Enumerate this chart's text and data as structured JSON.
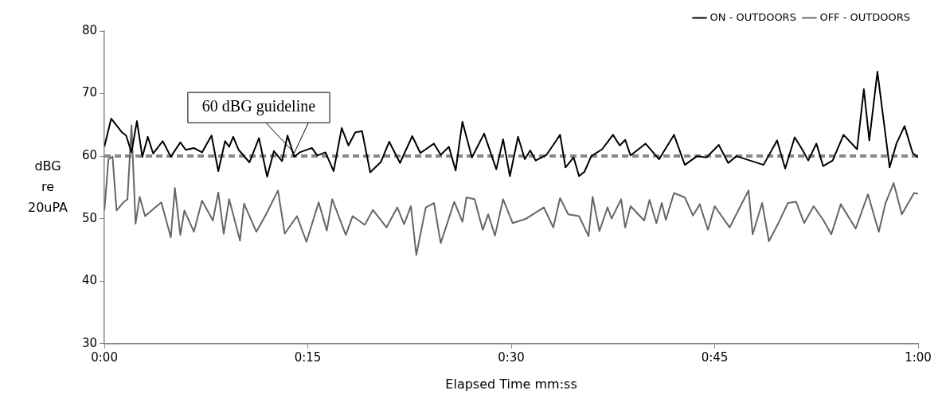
{
  "chart_data": {
    "type": "line",
    "xlabel": "Elapsed Time mm:ss",
    "ylabel": "dBG re 20uPA",
    "xlim": [
      0,
      60
    ],
    "xticks": [
      {
        "value": 0,
        "label": "0:00"
      },
      {
        "value": 15,
        "label": "0:15"
      },
      {
        "value": 30,
        "label": "0:30"
      },
      {
        "value": 45,
        "label": "0:45"
      },
      {
        "value": 60,
        "label": "1:00"
      }
    ],
    "ylim": [
      30,
      80
    ],
    "yticks": [
      30,
      40,
      50,
      60,
      70,
      80
    ],
    "grid": false,
    "legend": "top right",
    "marker": "none",
    "line_style": "solid",
    "ref_lines": [
      {
        "axis": "y",
        "value": 60,
        "color": "#888888",
        "line_style": "dashed"
      }
    ],
    "annotations": [
      {
        "text": "60 dBG guideline",
        "x": 14,
        "y": 60
      }
    ],
    "series": [
      {
        "name": "ON - OUTDOORS",
        "color": "#000000",
        "x": [
          0,
          0.5,
          1.3,
          1.6,
          2.0,
          2.4,
          2.8,
          3.2,
          3.6,
          4.3,
          4.9,
          5.6,
          6.0,
          6.6,
          7.2,
          7.9,
          8.4,
          8.9,
          9.2,
          9.5,
          9.9,
          10.7,
          11.4,
          12.0,
          12.5,
          13.1,
          13.5,
          14.0,
          14.4,
          15.3,
          15.7,
          16.3,
          16.9,
          17.5,
          18.0,
          18.5,
          19.0,
          19.6,
          20.4,
          21.0,
          21.8,
          22.7,
          23.3,
          23.7,
          24.3,
          24.8,
          25.4,
          25.9,
          26.4,
          27.1,
          28.0,
          28.9,
          29.4,
          29.9,
          30.5,
          31.0,
          31.4,
          31.8,
          32.6,
          33.1,
          33.6,
          34.0,
          34.6,
          35.0,
          35.4,
          35.9,
          36.7,
          37.5,
          38.0,
          38.4,
          38.8,
          39.9,
          40.9,
          42.0,
          42.8,
          43.7,
          44.4,
          45.3,
          46.0,
          46.6,
          47.6,
          48.6,
          49.6,
          50.2,
          50.9,
          51.5,
          51.9,
          52.5,
          53.0,
          53.7,
          54.5,
          55.5,
          56.0,
          56.4,
          57.0,
          57.9,
          58.4,
          59.0,
          59.6,
          60
        ],
        "values": [
          61.5,
          66,
          63.8,
          63.3,
          60.6,
          65.6,
          59.9,
          63.1,
          60.4,
          62.4,
          59.9,
          62.2,
          61,
          61.3,
          60.6,
          63.3,
          57.6,
          62.4,
          61.5,
          63.1,
          61,
          59,
          62.9,
          56.7,
          60.8,
          59.2,
          63.3,
          59.9,
          60.6,
          61.3,
          60.1,
          60.6,
          57.6,
          64.5,
          61.7,
          63.8,
          64,
          57.4,
          59.1,
          62.3,
          58.9,
          63.2,
          60.5,
          61.1,
          62,
          60.2,
          61.5,
          57.7,
          65.5,
          59.8,
          63.6,
          57.9,
          62.7,
          56.8,
          63.1,
          59.5,
          60.9,
          59.3,
          60.2,
          61.8,
          63.4,
          58.2,
          59.8,
          56.8,
          57.5,
          60,
          61.1,
          63.4,
          61.7,
          62.6,
          60.1,
          62,
          59.5,
          63.4,
          58.6,
          60,
          59.8,
          61.8,
          58.9,
          60,
          59.3,
          58.6,
          62.5,
          58,
          63,
          60.9,
          59.3,
          62,
          58.4,
          59.3,
          63.4,
          61.1,
          70.7,
          62.5,
          73.5,
          58.2,
          62,
          64.8,
          60.5,
          59.8
        ]
      },
      {
        "name": "OFF - OUTDOORS",
        "color": "#666666",
        "x": [
          0,
          0.3,
          0.6,
          0.9,
          1.4,
          1.7,
          2.0,
          2.3,
          2.6,
          3.0,
          3.7,
          4.2,
          4.9,
          5.2,
          5.6,
          5.9,
          6.6,
          7.2,
          8.0,
          8.4,
          8.8,
          9.2,
          10.0,
          10.3,
          11.2,
          11.9,
          12.8,
          13.3,
          14.2,
          14.9,
          15.8,
          16.4,
          16.8,
          17.8,
          18.3,
          19.2,
          19.8,
          20.8,
          21.6,
          22.1,
          22.6,
          23.0,
          23.7,
          24.3,
          24.8,
          25.8,
          26.4,
          26.7,
          27.3,
          27.9,
          28.3,
          28.8,
          29.4,
          30.1,
          31.1,
          32.4,
          33.1,
          33.6,
          34.2,
          35.0,
          35.7,
          36.0,
          36.5,
          37.1,
          37.4,
          38.1,
          38.4,
          38.8,
          39.8,
          40.2,
          40.7,
          41.1,
          41.4,
          42.0,
          42.8,
          43.4,
          43.9,
          44.5,
          45.0,
          46.1,
          46.9,
          47.5,
          47.8,
          48.5,
          49.0,
          49.7,
          50.4,
          51.0,
          51.6,
          52.3,
          53.0,
          53.6,
          54.3,
          55.4,
          56.3,
          57.1,
          57.6,
          58.2,
          58.8,
          59.7,
          60
        ],
        "values": [
          51.3,
          59.5,
          59.9,
          51.3,
          52.6,
          53.1,
          64.9,
          49.2,
          53.5,
          50.4,
          51.7,
          52.6,
          47,
          54.9,
          47.4,
          51.3,
          47.9,
          52.9,
          49.7,
          54.2,
          47.6,
          53.1,
          46.5,
          52.4,
          47.9,
          50.6,
          54.5,
          47.6,
          50.4,
          46.3,
          52.6,
          48.1,
          53.1,
          47.4,
          50.4,
          49,
          51.4,
          48.6,
          51.8,
          49.1,
          52,
          44.2,
          51.8,
          52.5,
          46.1,
          52.7,
          49.5,
          53.4,
          53.1,
          48.2,
          50.7,
          47.3,
          53.1,
          49.3,
          50,
          51.8,
          48.6,
          53.3,
          50.7,
          50.4,
          47.2,
          53.5,
          48,
          51.8,
          50,
          53.1,
          48.6,
          52,
          49.7,
          53,
          49.3,
          52.5,
          49.8,
          54.1,
          53.4,
          50.5,
          52.3,
          48.2,
          52,
          48.6,
          52,
          54.5,
          47.5,
          52.5,
          46.4,
          49.3,
          52.5,
          52.7,
          49.3,
          52,
          49.8,
          47.5,
          52.3,
          48.4,
          53.9,
          47.9,
          52.5,
          55.7,
          50.7,
          54.1,
          54
        ]
      }
    ]
  }
}
